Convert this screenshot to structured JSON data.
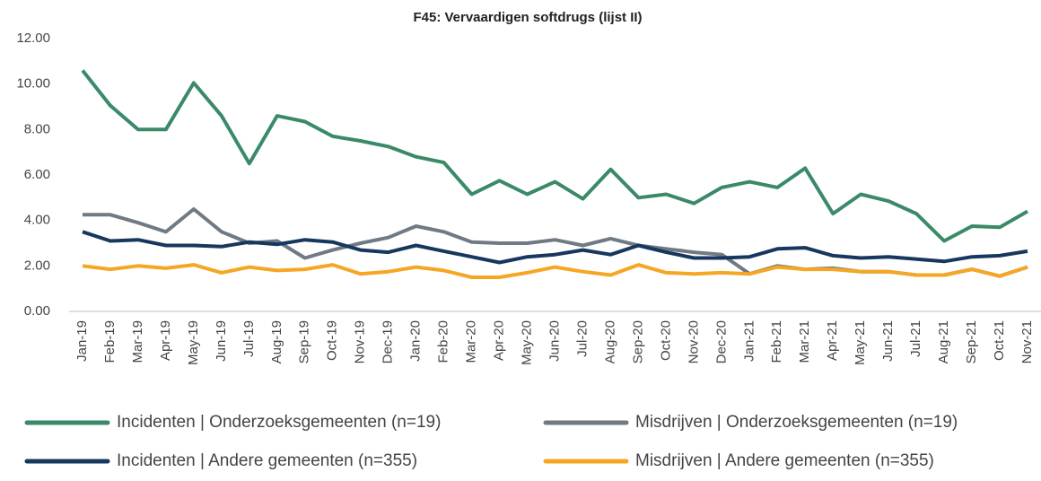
{
  "chart_data": {
    "type": "line",
    "title": "F45: Vervaardigen softdrugs (lijst II)",
    "categories": [
      "Jan-19",
      "Feb-19",
      "Mar-19",
      "Apr-19",
      "May-19",
      "Jun-19",
      "Jul-19",
      "Aug-19",
      "Sep-19",
      "Oct-19",
      "Nov-19",
      "Dec-19",
      "Jan-20",
      "Feb-20",
      "Mar-20",
      "Apr-20",
      "May-20",
      "Jun-20",
      "Jul-20",
      "Aug-20",
      "Sep-20",
      "Oct-20",
      "Nov-20",
      "Dec-20",
      "Jan-21",
      "Feb-21",
      "Mar-21",
      "Apr-21",
      "May-21",
      "Jun-21",
      "Jul-21",
      "Aug-21",
      "Sep-21",
      "Oct-21",
      "Nov-21"
    ],
    "series": [
      {
        "name": "Incidenten | Onderzoeksgemeenten (n=19)",
        "color": "#3a8a68",
        "values": [
          10.6,
          9.05,
          8.0,
          8.0,
          10.05,
          8.6,
          6.5,
          8.6,
          8.35,
          7.7,
          7.5,
          7.25,
          6.8,
          6.55,
          5.15,
          5.75,
          5.15,
          5.7,
          4.95,
          6.25,
          5.0,
          5.15,
          4.75,
          5.45,
          5.7,
          5.45,
          6.3,
          4.3,
          5.15,
          4.85,
          4.3,
          3.1,
          3.75,
          3.7,
          4.4
        ]
      },
      {
        "name": "Misdrijven | Onderzoeksgemeenten (n=19)",
        "color": "#6f7a84",
        "values": [
          4.25,
          4.25,
          3.9,
          3.5,
          4.5,
          3.5,
          3.0,
          3.1,
          2.35,
          2.7,
          3.0,
          3.25,
          3.75,
          3.5,
          3.05,
          3.0,
          3.0,
          3.15,
          2.9,
          3.2,
          2.9,
          2.75,
          2.6,
          2.5,
          1.65,
          2.0,
          1.85,
          1.9,
          1.75,
          1.75,
          1.6,
          1.6,
          1.85,
          1.55,
          1.95
        ]
      },
      {
        "name": "Incidenten | Andere gemeenten (n=355)",
        "color": "#17375e",
        "values": [
          3.5,
          3.1,
          3.15,
          2.9,
          2.9,
          2.85,
          3.05,
          2.95,
          3.15,
          3.05,
          2.7,
          2.6,
          2.9,
          2.65,
          2.4,
          2.15,
          2.4,
          2.5,
          2.7,
          2.5,
          2.9,
          2.6,
          2.35,
          2.35,
          2.4,
          2.75,
          2.8,
          2.45,
          2.35,
          2.4,
          2.3,
          2.2,
          2.4,
          2.45,
          2.65
        ]
      },
      {
        "name": "Misdrijven | Andere gemeenten (n=355)",
        "color": "#f5a623",
        "values": [
          2.0,
          1.85,
          2.0,
          1.9,
          2.05,
          1.7,
          1.95,
          1.8,
          1.85,
          2.05,
          1.65,
          1.75,
          1.95,
          1.8,
          1.5,
          1.5,
          1.7,
          1.95,
          1.75,
          1.6,
          2.05,
          1.7,
          1.65,
          1.7,
          1.65,
          1.95,
          1.85,
          1.85,
          1.75,
          1.75,
          1.6,
          1.6,
          1.85,
          1.55,
          1.95
        ]
      }
    ],
    "ylim": [
      0,
      12
    ],
    "yticks": [
      {
        "value": 0,
        "label": "0.00"
      },
      {
        "value": 2,
        "label": "2.00"
      },
      {
        "value": 4,
        "label": "4.00"
      },
      {
        "value": 6,
        "label": "6.00"
      },
      {
        "value": 8,
        "label": "8.00"
      },
      {
        "value": 10,
        "label": "10.00"
      },
      {
        "value": 12,
        "label": "12.00"
      }
    ],
    "grid": false,
    "legend": "bottom"
  }
}
